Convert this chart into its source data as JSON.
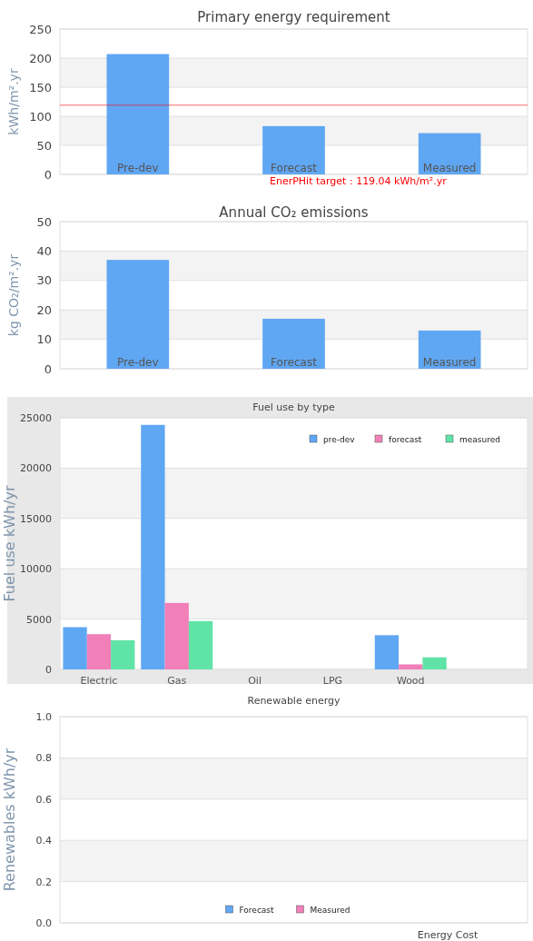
{
  "chart_data": [
    {
      "type": "bar",
      "title": "Primary energy requirement",
      "ylabel": "kWh/m².yr",
      "categories": [
        "Pre-dev",
        "Forecast",
        "Measured"
      ],
      "values": [
        207,
        83,
        71
      ],
      "color": "#60a7f3",
      "ylim": [
        0,
        250
      ],
      "yticks": [
        0,
        50,
        100,
        150,
        200,
        250
      ],
      "grid": true,
      "ref_lines": [
        {
          "axis": "y",
          "value": 119.04,
          "label": "EnerPHit target : 119.04 kWh/m².yr",
          "color": "#ff0000"
        }
      ]
    },
    {
      "type": "bar",
      "title": "Annual CO₂ emissions",
      "ylabel": "kg CO₂/m².yr",
      "categories": [
        "Pre-dev",
        "Forecast",
        "Measured"
      ],
      "values": [
        37,
        17,
        13
      ],
      "color": "#60a7f3",
      "ylim": [
        0,
        50
      ],
      "yticks": [
        0,
        10,
        20,
        30,
        40,
        50
      ],
      "grid": true
    },
    {
      "type": "bar",
      "title": "Fuel use by type",
      "ylabel": "Fuel use  kWh/yr",
      "categories": [
        "Electric",
        "Gas",
        "Oil",
        "LPG",
        "Wood",
        null
      ],
      "series": [
        {
          "name": "pre-dev",
          "color": "#60a7f3",
          "values": [
            4200,
            24300,
            0,
            0,
            3400,
            null
          ]
        },
        {
          "name": "forecast",
          "color": "#f17fb8",
          "values": [
            3500,
            6600,
            0,
            0,
            500,
            null
          ]
        },
        {
          "name": "measured",
          "color": "#5fe3a7",
          "values": [
            2900,
            4800,
            0,
            0,
            1200,
            null
          ]
        }
      ],
      "ylim": [
        0,
        25000
      ],
      "yticks": [
        0,
        5000,
        10000,
        15000,
        20000,
        25000
      ],
      "grid": true,
      "legend": "top right"
    },
    {
      "type": "bar",
      "title": "Renewable energy",
      "ylabel": "Renewables  kWh/yr",
      "categories": [
        null
      ],
      "series": [
        {
          "name": "Forecast",
          "color": "#60a7f3",
          "values": [
            null
          ]
        },
        {
          "name": "Measured",
          "color": "#f17fb8",
          "values": [
            null
          ]
        }
      ],
      "ylim": [
        0,
        1
      ],
      "yticks": [
        {
          "value": 0,
          "label": "0.0"
        },
        {
          "value": 0.2,
          "label": "0.2"
        },
        {
          "value": 0.4,
          "label": "0.4"
        },
        {
          "value": 0.6,
          "label": "0.6"
        },
        {
          "value": 0.8,
          "label": "0.8"
        },
        {
          "value": 1,
          "label": "1.0"
        }
      ],
      "grid": true,
      "legend": "bottom",
      "annotations": [
        "Energy Cost"
      ]
    }
  ]
}
